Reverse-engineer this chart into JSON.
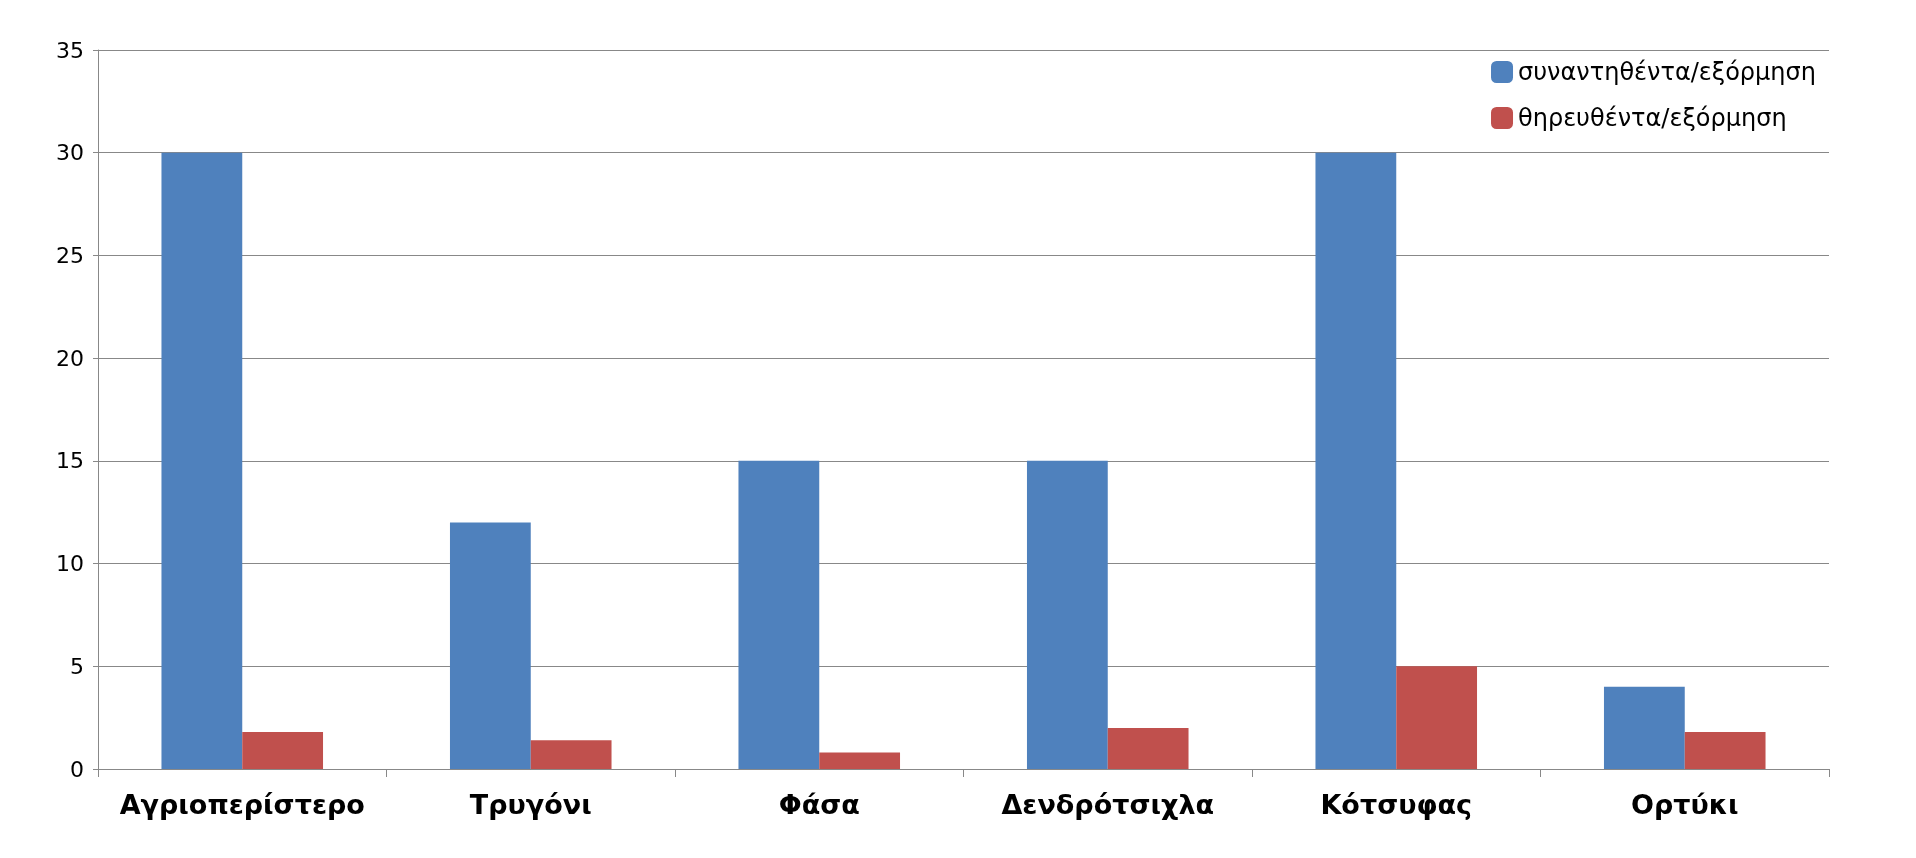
{
  "chart_data": {
    "type": "bar",
    "categories": [
      "Αγριοπερίστερο",
      "Τρυγόνι",
      "Φάσα",
      "Δενδρότσιχλα",
      "Κότσυφας",
      "Ορτύκι"
    ],
    "series": [
      {
        "name": "συναντηθέντα/εξόρμηση",
        "color": "#4f81bd",
        "values": [
          30,
          12,
          15,
          15,
          30,
          4
        ]
      },
      {
        "name": "θηρευθέντα/εξόρμηση",
        "color": "#c0504d",
        "values": [
          1.8,
          1.4,
          0.8,
          2,
          5,
          1.8
        ]
      }
    ],
    "ylim": [
      0,
      35
    ],
    "yticks": [
      0,
      5,
      10,
      15,
      20,
      25,
      30,
      35
    ],
    "grid": "y",
    "legend": "top right"
  }
}
